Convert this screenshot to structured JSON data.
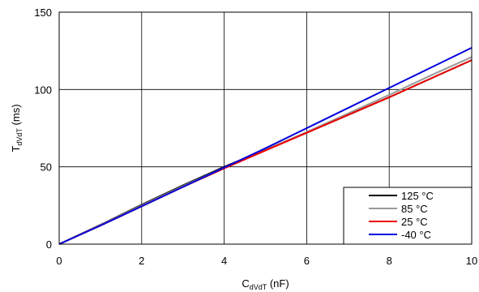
{
  "chart_data": {
    "type": "line",
    "xlabel": {
      "main": "C",
      "sub": "dVdT",
      "unit": " (nF)"
    },
    "ylabel": {
      "main": "T",
      "sub": "dVdT",
      "unit": " (ms)"
    },
    "xlim": [
      0,
      10
    ],
    "ylim": [
      0,
      150
    ],
    "xticks": [
      0,
      2,
      4,
      6,
      8,
      10
    ],
    "yticks": [
      0,
      50,
      100,
      150
    ],
    "grid": true,
    "legend_position": "bottom-right",
    "series": [
      {
        "name": "125 °C",
        "color": "#000000",
        "x": [
          0,
          1,
          2,
          3,
          4,
          5,
          6,
          7,
          8,
          9,
          10
        ],
        "y": [
          0,
          12.5,
          25.5,
          38,
          50,
          61,
          72,
          83.5,
          95,
          107,
          119
        ]
      },
      {
        "name": "85 °C",
        "color": "#999999",
        "x": [
          0,
          1,
          2,
          3,
          4,
          5,
          6,
          7,
          8,
          9,
          10
        ],
        "y": [
          0,
          12.3,
          25,
          37.5,
          49.5,
          61,
          72.5,
          84.5,
          96.5,
          109,
          121
        ]
      },
      {
        "name": "25 °C",
        "color": "#ee0000",
        "x": [
          0,
          1,
          2,
          3,
          4,
          5,
          6,
          7,
          8,
          9,
          10
        ],
        "y": [
          0,
          12,
          24.5,
          37,
          49,
          60.5,
          72,
          83.5,
          95,
          107,
          119
        ]
      },
      {
        "name": "-40 °C",
        "color": "#0000dd",
        "x": [
          0,
          1,
          2,
          3,
          4,
          5,
          6,
          7,
          8,
          9,
          10
        ],
        "y": [
          0,
          12,
          24.5,
          37,
          49.5,
          62,
          75,
          88,
          101,
          114,
          127
        ]
      }
    ]
  }
}
